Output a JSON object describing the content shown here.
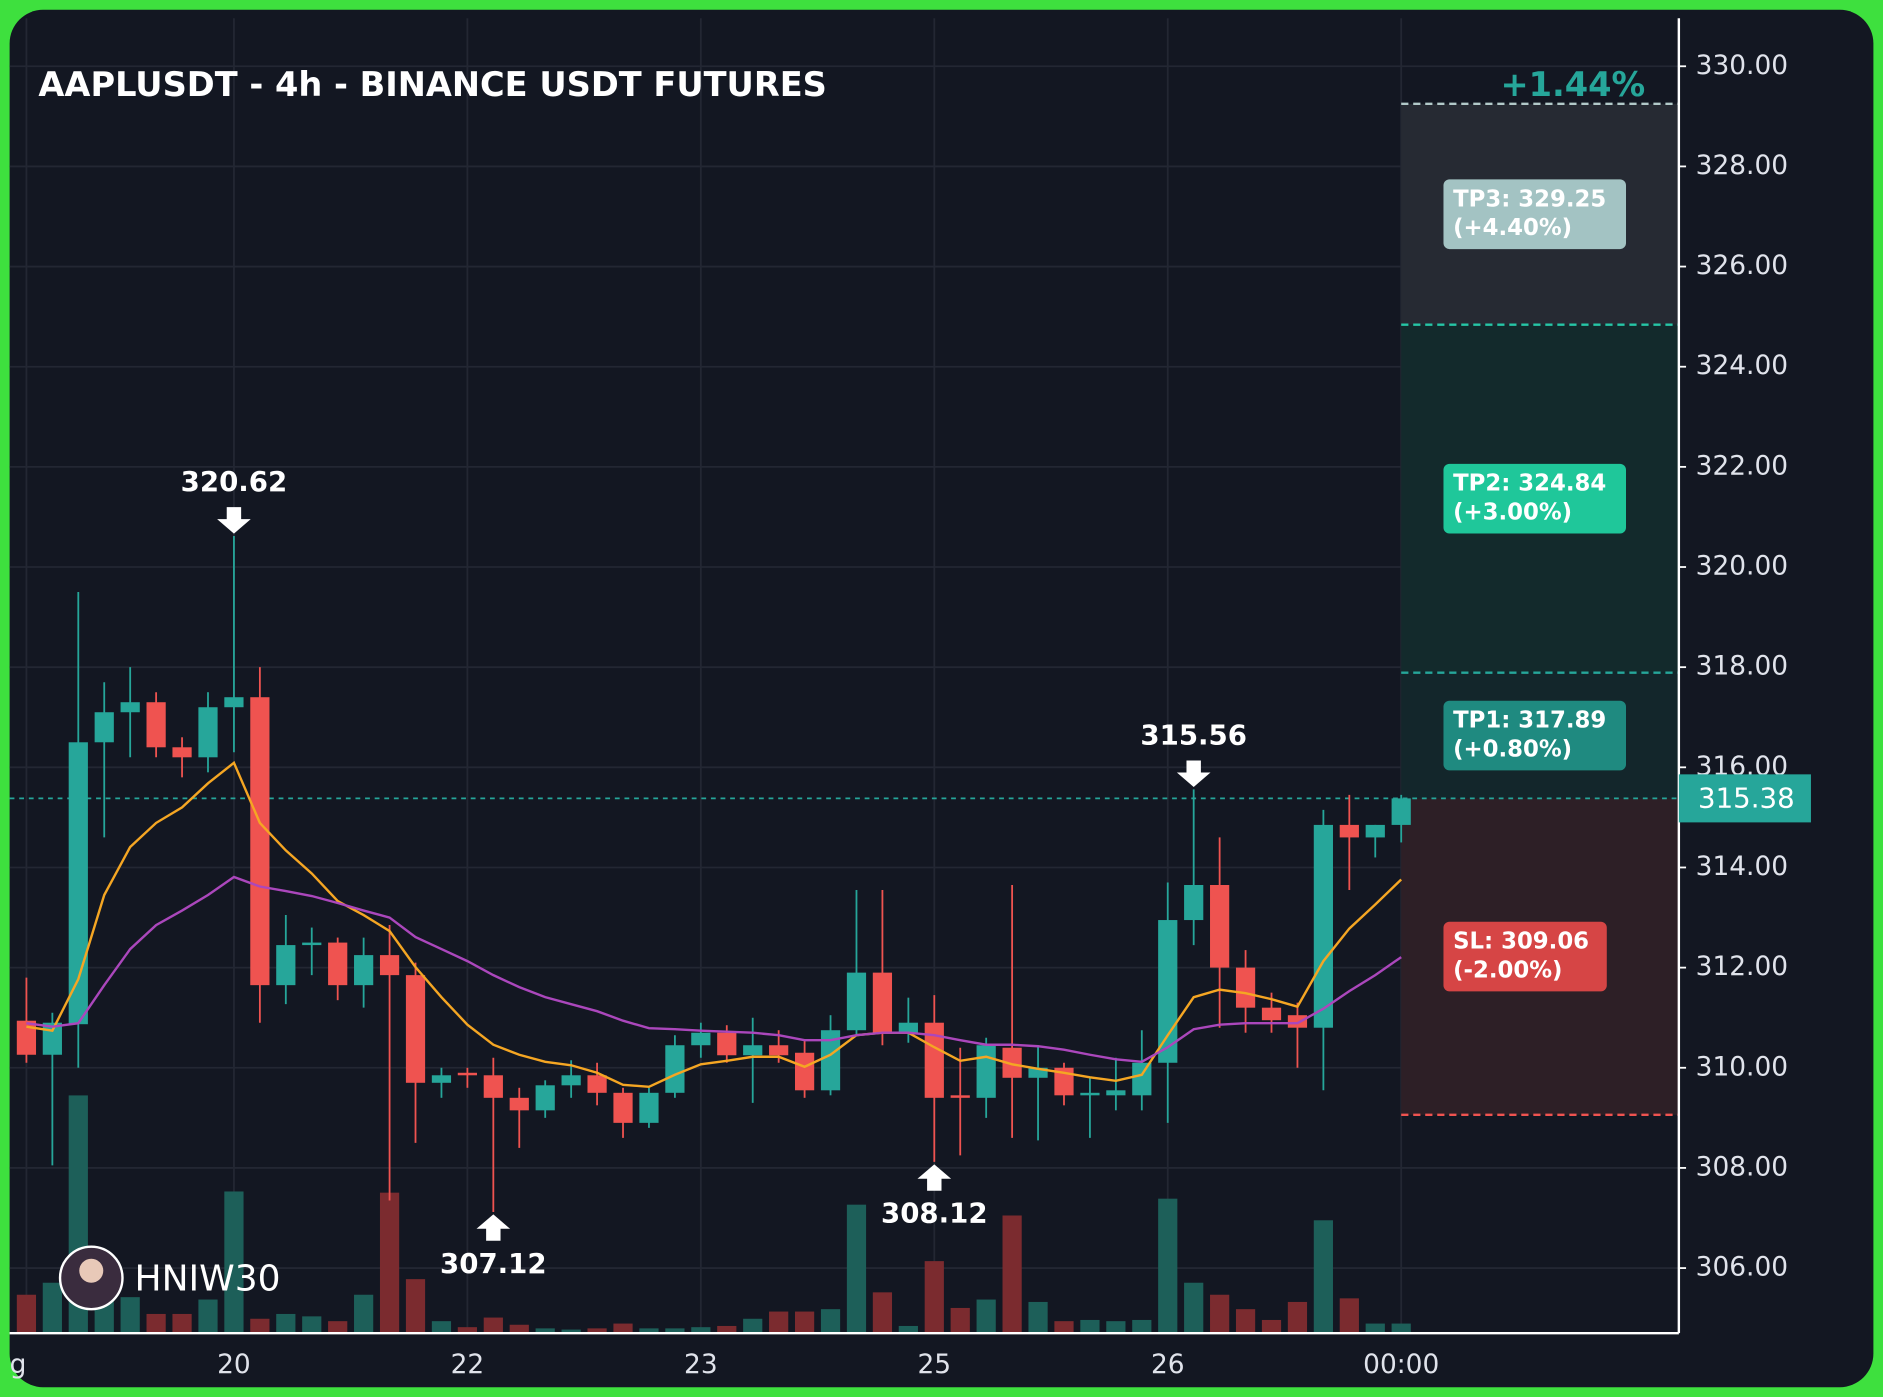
{
  "chart_data": {
    "type": "candlestick",
    "title": "AAPLUSDT - 4h - BINANCE USDT FUTURES",
    "categories": [
      "g",
      null,
      null,
      null,
      null,
      null,
      null,
      null,
      "20",
      null,
      null,
      null,
      null,
      null,
      null,
      null,
      null,
      "22",
      null,
      null,
      null,
      null,
      null,
      null,
      null,
      null,
      "23",
      null,
      null,
      null,
      null,
      null,
      null,
      null,
      null,
      "25",
      null,
      null,
      null,
      null,
      null,
      null,
      null,
      null,
      "26",
      null,
      null,
      null,
      null,
      null,
      null,
      null,
      null,
      "00:00"
    ],
    "open": [
      310.94,
      310.26,
      310.87,
      316.5,
      317.1,
      317.3,
      316.4,
      316.2,
      317.2,
      317.4,
      311.65,
      312.45,
      312.5,
      311.65,
      312.25,
      311.85,
      309.7,
      309.9,
      309.85,
      309.4,
      309.15,
      309.65,
      309.85,
      309.5,
      308.9,
      309.5,
      310.45,
      310.7,
      310.25,
      310.45,
      310.3,
      309.55,
      310.75,
      311.9,
      310.7,
      310.9,
      309.45,
      309.4,
      310.4,
      309.8,
      310.0,
      309.45,
      309.45,
      309.45,
      310.1,
      312.95,
      313.65,
      312.0,
      311.2,
      311.05,
      310.8,
      314.85,
      314.6,
      314.85
    ],
    "high": [
      311.8,
      311.1,
      319.5,
      317.7,
      318.0,
      317.5,
      316.6,
      317.5,
      320.62,
      318.0,
      313.05,
      312.8,
      312.6,
      312.6,
      312.85,
      312.1,
      310.0,
      310.0,
      310.2,
      309.6,
      309.75,
      310.15,
      310.1,
      309.6,
      309.6,
      310.65,
      310.9,
      310.85,
      311.0,
      310.75,
      310.55,
      311.05,
      313.55,
      313.55,
      311.4,
      311.45,
      310.4,
      310.6,
      313.65,
      310.45,
      310.1,
      309.8,
      310.2,
      310.75,
      313.7,
      315.56,
      314.6,
      312.35,
      311.5,
      311.3,
      315.15,
      315.45,
      314.85,
      315.45
    ],
    "low": [
      310.1,
      308.05,
      310.0,
      314.6,
      316.2,
      316.2,
      315.8,
      315.9,
      316.3,
      310.9,
      311.27,
      311.85,
      311.35,
      311.2,
      307.35,
      308.5,
      309.4,
      309.6,
      307.12,
      308.4,
      309.0,
      309.4,
      309.25,
      308.6,
      308.8,
      309.4,
      310.2,
      310.1,
      309.3,
      310.1,
      309.4,
      309.45,
      310.65,
      310.45,
      310.5,
      308.12,
      308.25,
      309.0,
      308.6,
      308.55,
      309.25,
      308.6,
      309.15,
      309.15,
      308.9,
      312.45,
      310.8,
      310.7,
      310.7,
      310.0,
      309.55,
      313.55,
      314.2,
      314.5
    ],
    "close": [
      310.26,
      310.9,
      316.5,
      317.1,
      317.3,
      316.4,
      316.2,
      317.2,
      317.4,
      311.65,
      312.45,
      312.5,
      311.65,
      312.25,
      311.85,
      309.7,
      309.85,
      309.85,
      309.4,
      309.15,
      309.65,
      309.85,
      309.5,
      308.9,
      309.5,
      310.45,
      310.7,
      310.25,
      310.45,
      310.25,
      309.55,
      310.75,
      311.9,
      310.7,
      310.9,
      309.4,
      309.4,
      310.45,
      309.8,
      310.0,
      309.45,
      309.5,
      309.55,
      310.1,
      312.95,
      313.65,
      312.0,
      311.2,
      310.95,
      310.8,
      314.85,
      314.6,
      314.85,
      315.38
    ],
    "volume": [
      32,
      42,
      198,
      30,
      30,
      16,
      16,
      28,
      118,
      12,
      16,
      14,
      10,
      32,
      117,
      45,
      10,
      5,
      13,
      7,
      4,
      3,
      4,
      8,
      4,
      4,
      5,
      6,
      12,
      18,
      18,
      20,
      107,
      34,
      6,
      60,
      21,
      28,
      98,
      26,
      10,
      11,
      10,
      11,
      112,
      42,
      32,
      20,
      11,
      26,
      94,
      29,
      8,
      8
    ],
    "volume_ylim": [
      0,
      1000
    ],
    "up_color": "#26a69a",
    "down_color": "#ef5350",
    "volume_up_color": "#1d5f59",
    "volume_down_color": "#7b2b2f",
    "lines": [
      {
        "color": "#f5a623",
        "values": [
          310.82,
          310.74,
          311.77,
          313.45,
          314.41,
          314.89,
          315.2,
          315.68,
          316.09,
          314.89,
          314.34,
          313.88,
          313.33,
          313.05,
          312.73,
          312.01,
          311.41,
          310.86,
          310.46,
          310.26,
          310.12,
          310.05,
          309.9,
          309.66,
          309.62,
          309.86,
          310.07,
          310.14,
          310.22,
          310.22,
          310.02,
          310.26,
          310.65,
          310.7,
          310.7,
          310.41,
          310.14,
          310.22,
          310.07,
          309.98,
          309.9,
          309.81,
          309.74,
          309.86,
          310.65,
          311.41,
          311.56,
          311.49,
          311.37,
          311.22,
          312.13,
          312.78,
          313.26,
          313.76
        ]
      },
      {
        "color": "#ab47bc",
        "values": [
          310.89,
          310.82,
          310.89,
          311.65,
          312.37,
          312.85,
          313.14,
          313.45,
          313.81,
          313.62,
          313.53,
          313.43,
          313.29,
          313.14,
          313.0,
          312.61,
          312.37,
          312.13,
          311.85,
          311.61,
          311.41,
          311.27,
          311.13,
          310.94,
          310.79,
          310.77,
          310.74,
          310.72,
          310.7,
          310.65,
          310.55,
          310.55,
          310.65,
          310.7,
          310.7,
          310.65,
          310.55,
          310.46,
          310.46,
          310.43,
          310.36,
          310.26,
          310.17,
          310.12,
          310.41,
          310.77,
          310.86,
          310.89,
          310.89,
          310.89,
          311.18,
          311.53,
          311.85,
          312.21
        ]
      }
    ],
    "annotations": [
      {
        "candle": 8,
        "value": 320.62,
        "position": "above"
      },
      {
        "candle": 18,
        "value": 307.12,
        "position": "below"
      },
      {
        "candle": 35,
        "value": 308.12,
        "position": "below"
      },
      {
        "candle": 45,
        "value": 315.56,
        "position": "above"
      }
    ],
    "last_price": 315.38,
    "position_pnl": "+1.44%",
    "targets": [
      {
        "value": 329.25,
        "label": "TP3: 329.25",
        "change": "(+4.40%)",
        "color": "#a3c3c3",
        "zone": "#262a33",
        "line": "#b2c9c9"
      },
      {
        "value": 324.84,
        "label": "TP2: 324.84",
        "change": "(+3.00%)",
        "color": "#1fc79a",
        "zone": "#132a2c",
        "line": "#26c6a6"
      },
      {
        "value": 317.89,
        "label": "TP1: 317.89",
        "change": "(+0.80%)",
        "color": "#1f8a80",
        "zone": "#13262b",
        "line": "#26a69a"
      }
    ],
    "stop": {
      "value": 309.06,
      "label": "SL: 309.06",
      "change": "(-2.00%)",
      "color": "#d64545",
      "zone": "#2d1f26",
      "line": "#ef5350"
    },
    "ylim": [
      304.7,
      330.96
    ],
    "yticks": [
      {
        "value": 306,
        "label": "306.00"
      },
      {
        "value": 308,
        "label": "308.00"
      },
      {
        "value": 310,
        "label": "310.00"
      },
      {
        "value": 312,
        "label": "312.00"
      },
      {
        "value": 314,
        "label": "314.00"
      },
      {
        "value": 316,
        "label": "316.00"
      },
      {
        "value": 318,
        "label": "318.00"
      },
      {
        "value": 320,
        "label": "320.00"
      },
      {
        "value": 322,
        "label": "322.00"
      },
      {
        "value": 324,
        "label": "324.00"
      },
      {
        "value": 326,
        "label": "326.00"
      },
      {
        "value": 328,
        "label": "328.00"
      },
      {
        "value": 330,
        "label": "330.00"
      }
    ],
    "grid": true,
    "watermark": "HNIW30"
  }
}
